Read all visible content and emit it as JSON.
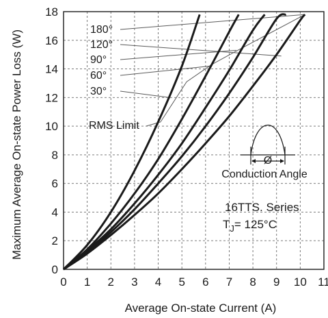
{
  "chart_data": {
    "type": "line",
    "title": "",
    "xlabel": "Average On-state Current (A)",
    "ylabel": "Maximum Average On-state Power Loss (W)",
    "xlim": [
      0,
      11
    ],
    "ylim": [
      0,
      18
    ],
    "x_ticks": [
      0,
      1,
      2,
      3,
      4,
      5,
      6,
      7,
      8,
      9,
      10,
      11
    ],
    "y_ticks": [
      0,
      2,
      4,
      6,
      8,
      10,
      12,
      14,
      16,
      18
    ],
    "grid": true,
    "series": [
      {
        "name": "180°",
        "x": [
          0,
          1,
          2,
          3,
          4,
          5,
          6,
          7,
          8,
          9,
          10,
          10.2
        ],
        "y": [
          0,
          1.1,
          2.4,
          3.8,
          5.3,
          7.0,
          8.8,
          10.7,
          12.8,
          15.0,
          17.4,
          17.8
        ]
      },
      {
        "name": "120°",
        "x": [
          0,
          1,
          2,
          3,
          4,
          5,
          6,
          7,
          8,
          9,
          9.4
        ],
        "y": [
          0,
          1.2,
          2.6,
          4.2,
          6.0,
          7.9,
          10.0,
          12.3,
          14.8,
          17.5,
          17.8
        ]
      },
      {
        "name": "90°",
        "x": [
          0,
          1,
          2,
          3,
          4,
          5,
          6,
          7,
          8,
          8.5
        ],
        "y": [
          0,
          1.3,
          2.8,
          4.6,
          6.6,
          8.8,
          11.3,
          13.9,
          16.7,
          17.8
        ]
      },
      {
        "name": "60°",
        "x": [
          0,
          1,
          2,
          3,
          4,
          5,
          6,
          7,
          7.4
        ],
        "y": [
          0,
          1.4,
          3.2,
          5.3,
          7.7,
          10.5,
          13.5,
          16.6,
          17.8
        ]
      },
      {
        "name": "30°",
        "x": [
          0,
          1,
          2,
          3,
          4,
          5,
          5.75
        ],
        "y": [
          0,
          1.7,
          4.0,
          6.9,
          10.3,
          14.2,
          17.8
        ]
      }
    ],
    "rms_limit": {
      "label": "RMS Limit",
      "x": [
        4.1,
        5.2,
        6.25,
        7.25,
        8.15,
        10.2
      ],
      "y": [
        10.3,
        13.1,
        14.3,
        15.2,
        16.0,
        17.8
      ]
    },
    "annotations": {
      "conduction_angle": "Conduction Angle",
      "phi_symbol": "Ø",
      "series_label": "16TTS. Series",
      "tj_prefix": "T",
      "tj_sub": "J",
      "tj_value": "= 125°C"
    }
  }
}
